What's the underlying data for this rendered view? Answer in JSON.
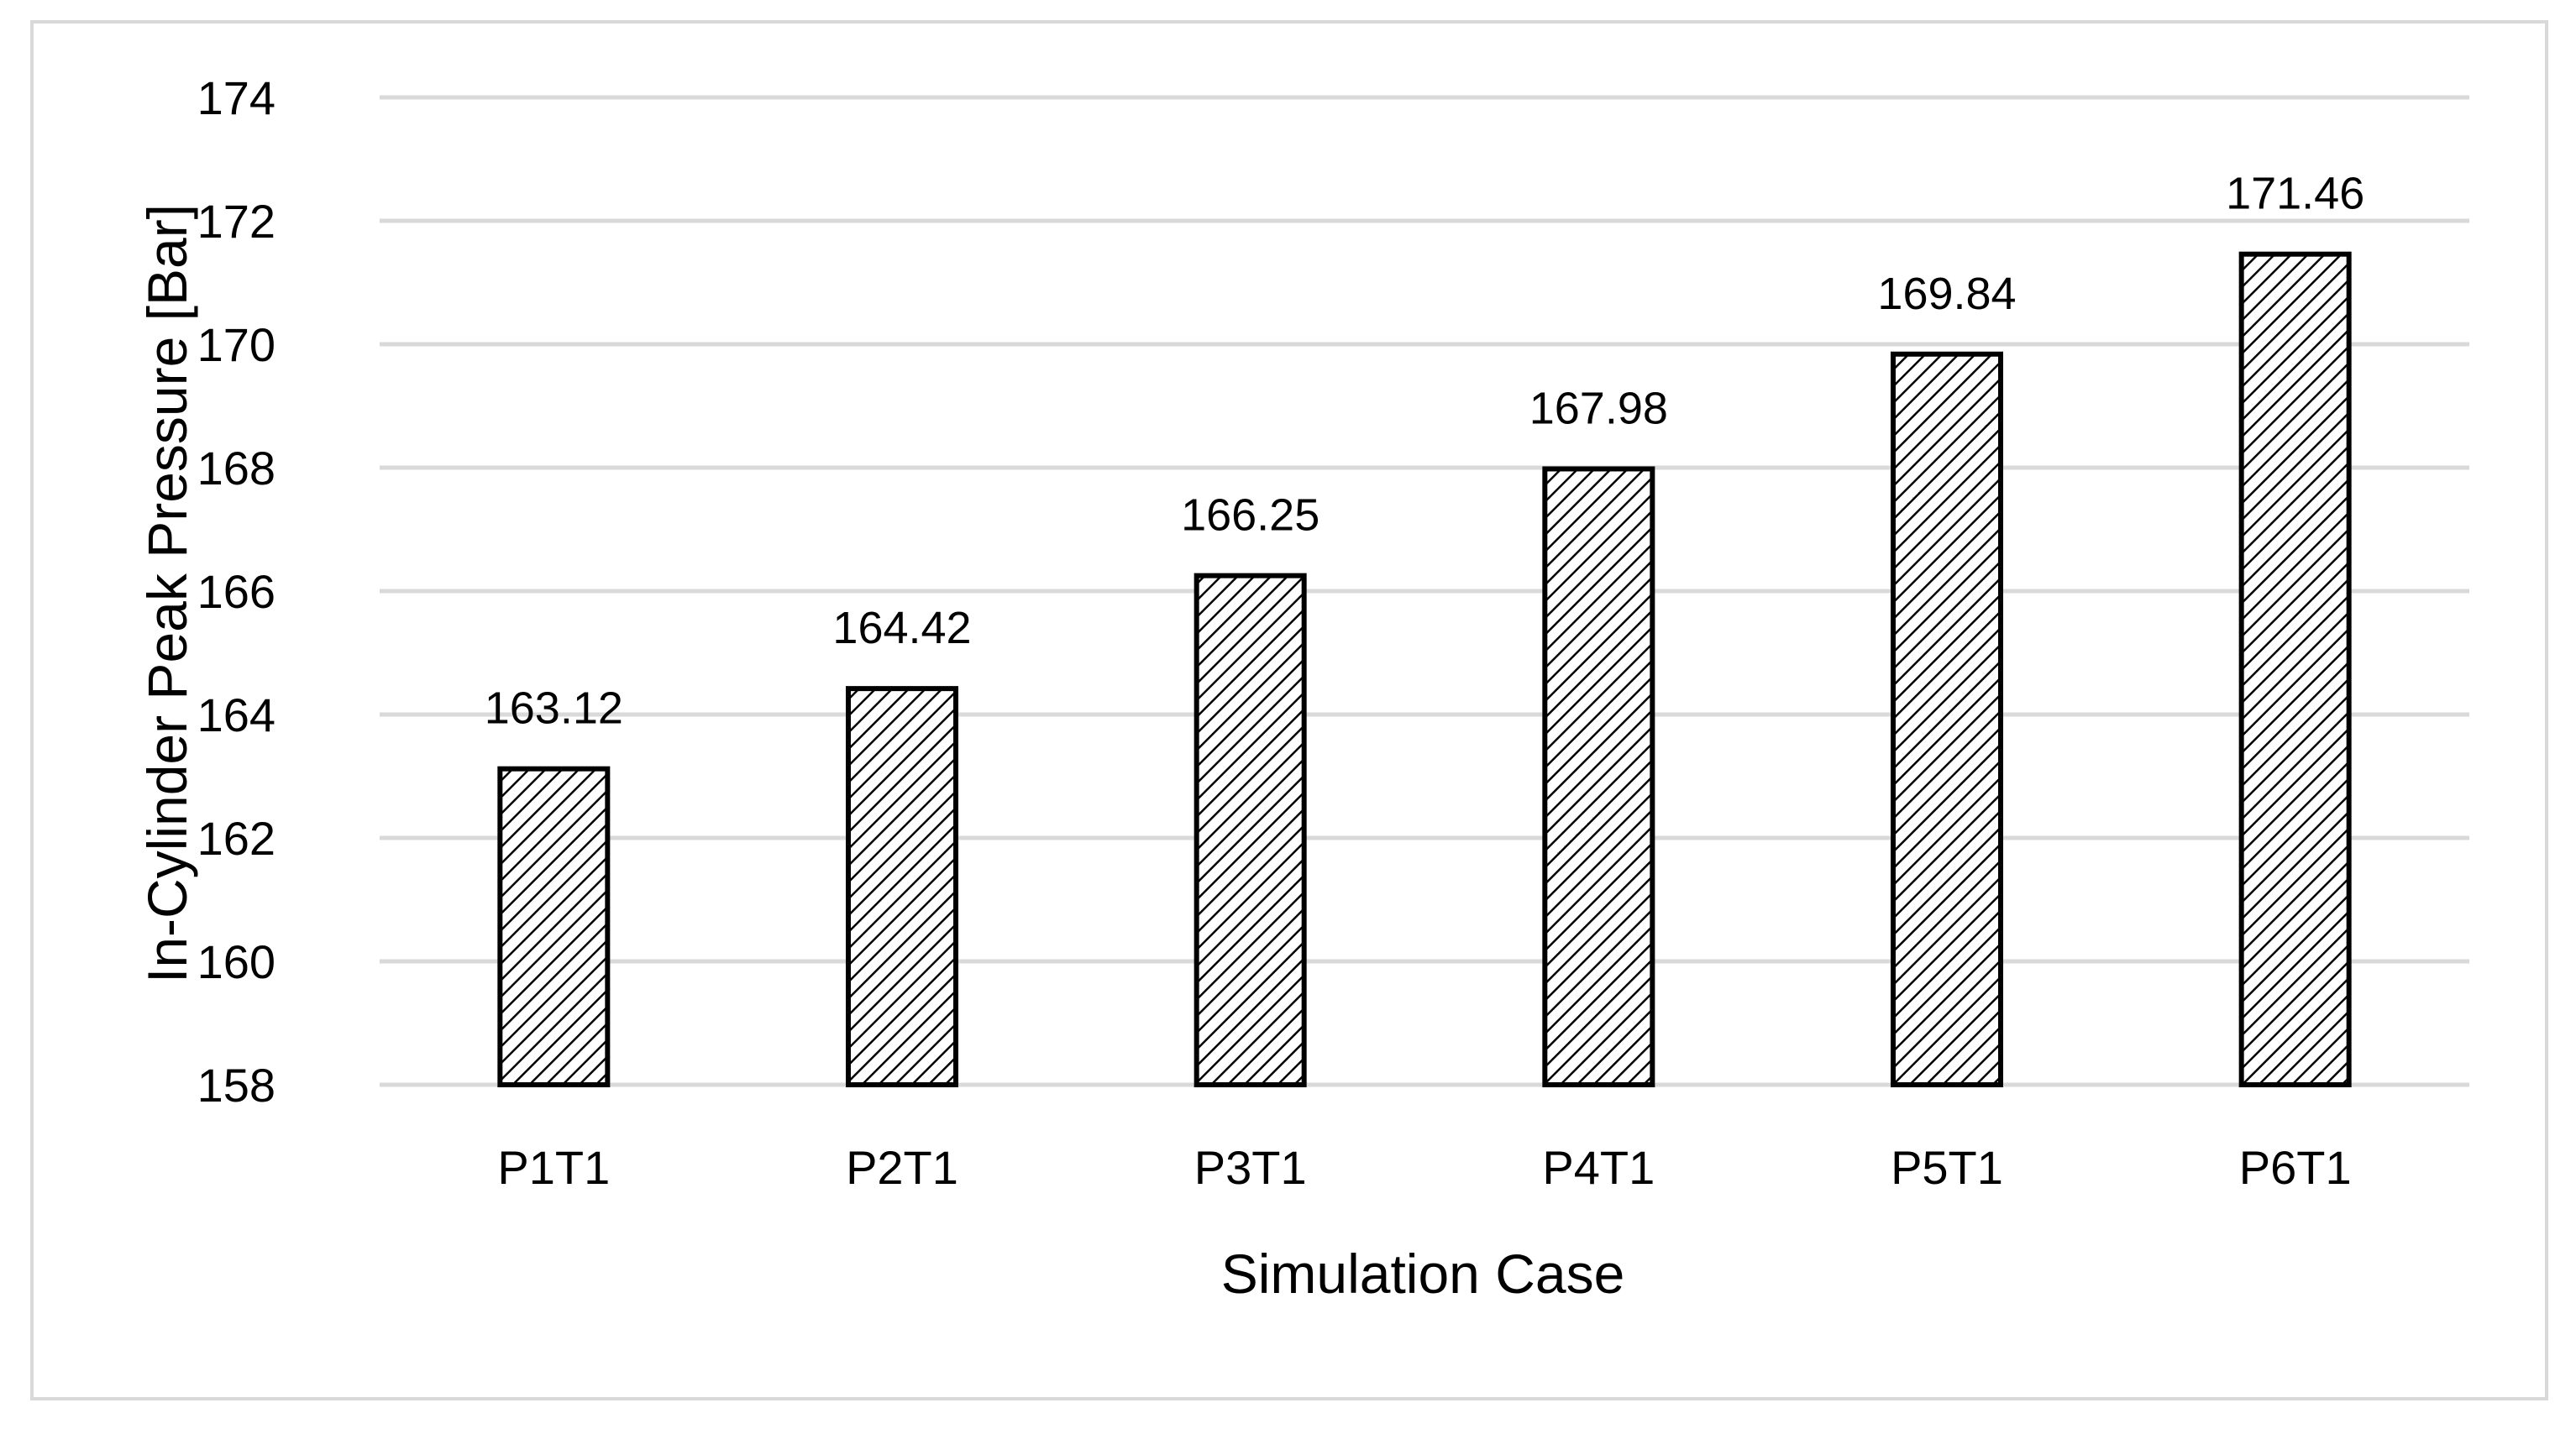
{
  "chart_data": {
    "type": "bar",
    "title": "",
    "xlabel": "Simulation Case",
    "ylabel": "In-Cylinder Peak Pressure [Bar]",
    "categories": [
      "P1T1",
      "P2T1",
      "P3T1",
      "P4T1",
      "P5T1",
      "P6T1"
    ],
    "values": [
      163.12,
      164.42,
      166.25,
      167.98,
      169.84,
      171.46
    ],
    "value_labels": [
      "163.12",
      "164.42",
      "166.25",
      "167.98",
      "169.84",
      "171.46"
    ],
    "ylim": [
      158,
      174
    ],
    "yticks": [
      158,
      160,
      162,
      164,
      166,
      168,
      170,
      172,
      174
    ],
    "ytick_labels": [
      "158",
      "160",
      "162",
      "164",
      "166",
      "168",
      "170",
      "172",
      "174"
    ],
    "grid": true,
    "legend": "none",
    "bar_fill": "diagonal-hatch",
    "colors": {
      "bar_edge": "#000000",
      "hatch": "#000000",
      "grid": "#d9d9d9",
      "frame": "#d9d9d9"
    }
  }
}
